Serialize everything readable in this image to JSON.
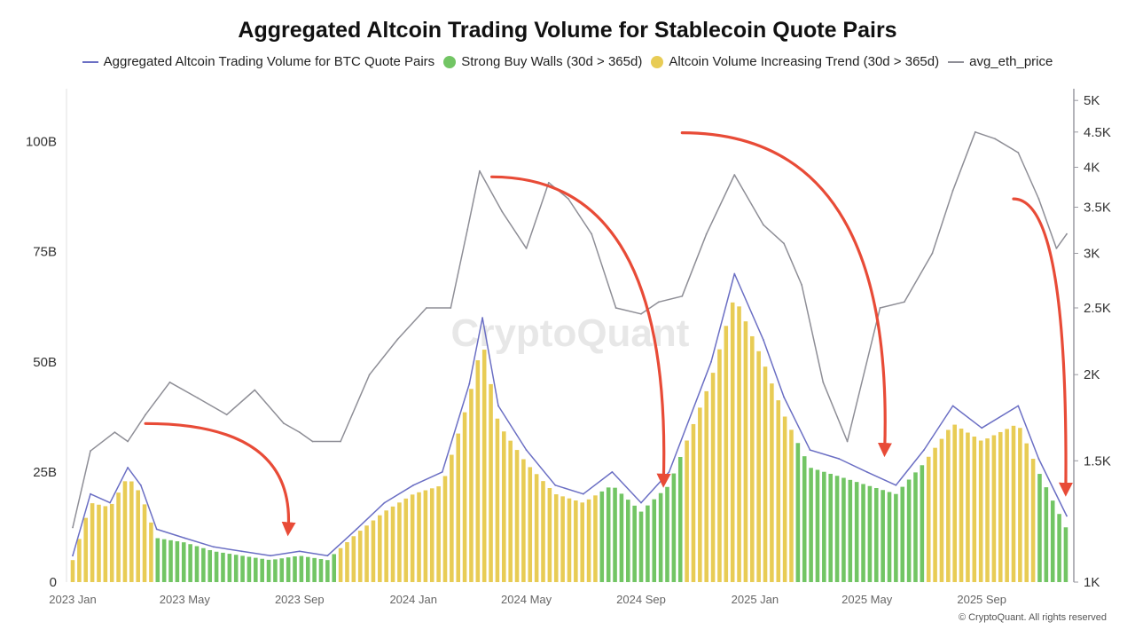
{
  "chart_data": {
    "type": "bar",
    "title": "Aggregated Altcoin Trading Volume for Stablecoin Quote Pairs",
    "legend_placement": "top",
    "grid": false,
    "x_ticks": [
      "2023 Jan",
      "2023 May",
      "2023 Sep",
      "2024 Jan",
      "2024 May",
      "2024 Sep",
      "2025 Jan",
      "2025 May",
      "2025 Sep"
    ],
    "y_left": {
      "ticks": [
        "0",
        "25B",
        "50B",
        "75B",
        "100B"
      ],
      "tick_values": [
        0,
        25,
        50,
        75,
        100
      ],
      "unit": "B",
      "ylim": [
        0,
        112
      ]
    },
    "y_right": {
      "scale": "log",
      "ticks": [
        "1K",
        "1.5K",
        "2K",
        "2.5K",
        "3K",
        "3.5K",
        "4K",
        "4.5K",
        "5K"
      ],
      "tick_values": [
        1000,
        1500,
        2000,
        2500,
        3000,
        3500,
        4000,
        4500,
        5000
      ],
      "ylim": [
        1000,
        5200
      ]
    },
    "x_range": [
      "2023-01-01",
      "2025-12-01"
    ],
    "series": [
      {
        "name": "Aggregated Altcoin Trading Volume for BTC Quote Pairs",
        "color": "#6b6fc4",
        "kind": "line",
        "points": [
          [
            "2023-01-01",
            6
          ],
          [
            "2023-01-20",
            20
          ],
          [
            "2023-02-10",
            18
          ],
          [
            "2023-03-01",
            26
          ],
          [
            "2023-03-15",
            22
          ],
          [
            "2023-04-01",
            12
          ],
          [
            "2023-05-01",
            10
          ],
          [
            "2023-06-01",
            8
          ],
          [
            "2023-07-01",
            7
          ],
          [
            "2023-08-01",
            6
          ],
          [
            "2023-09-01",
            7
          ],
          [
            "2023-10-01",
            6
          ],
          [
            "2023-11-01",
            12
          ],
          [
            "2023-12-01",
            18
          ],
          [
            "2024-01-01",
            22
          ],
          [
            "2024-02-01",
            25
          ],
          [
            "2024-03-01",
            45
          ],
          [
            "2024-03-15",
            60
          ],
          [
            "2024-04-01",
            40
          ],
          [
            "2024-05-01",
            30
          ],
          [
            "2024-06-01",
            22
          ],
          [
            "2024-07-01",
            20
          ],
          [
            "2024-08-01",
            25
          ],
          [
            "2024-09-01",
            18
          ],
          [
            "2024-10-01",
            25
          ],
          [
            "2024-11-15",
            50
          ],
          [
            "2024-12-10",
            70
          ],
          [
            "2025-01-10",
            55
          ],
          [
            "2025-02-01",
            42
          ],
          [
            "2025-03-01",
            30
          ],
          [
            "2025-04-01",
            28
          ],
          [
            "2025-05-01",
            25
          ],
          [
            "2025-06-01",
            22
          ],
          [
            "2025-07-01",
            30
          ],
          [
            "2025-08-01",
            40
          ],
          [
            "2025-09-01",
            35
          ],
          [
            "2025-10-10",
            40
          ],
          [
            "2025-11-01",
            28
          ],
          [
            "2025-12-01",
            15
          ]
        ]
      },
      {
        "name": "Strong Buy Walls (30d > 365d)",
        "color": "#72c564",
        "kind": "bar"
      },
      {
        "name": "Altcoin Volume Increasing Trend (30d > 365d)",
        "color": "#e8cc55",
        "kind": "bar"
      },
      {
        "name": "avg_eth_price",
        "color": "#8e8e96",
        "kind": "line",
        "axis": "right",
        "points": [
          [
            "2023-01-01",
            1200
          ],
          [
            "2023-01-20",
            1550
          ],
          [
            "2023-02-15",
            1650
          ],
          [
            "2023-03-01",
            1600
          ],
          [
            "2023-03-20",
            1750
          ],
          [
            "2023-04-15",
            1950
          ],
          [
            "2023-05-15",
            1850
          ],
          [
            "2023-06-15",
            1750
          ],
          [
            "2023-07-15",
            1900
          ],
          [
            "2023-08-15",
            1700
          ],
          [
            "2023-09-01",
            1650
          ],
          [
            "2023-09-15",
            1600
          ],
          [
            "2023-10-15",
            1600
          ],
          [
            "2023-11-15",
            2000
          ],
          [
            "2023-12-15",
            2250
          ],
          [
            "2024-01-15",
            2500
          ],
          [
            "2024-02-10",
            2500
          ],
          [
            "2024-02-28",
            3250
          ],
          [
            "2024-03-12",
            3950
          ],
          [
            "2024-04-05",
            3450
          ],
          [
            "2024-05-01",
            3050
          ],
          [
            "2024-05-25",
            3800
          ],
          [
            "2024-06-15",
            3600
          ],
          [
            "2024-07-10",
            3200
          ],
          [
            "2024-08-05",
            2500
          ],
          [
            "2024-09-01",
            2450
          ],
          [
            "2024-09-20",
            2550
          ],
          [
            "2024-10-15",
            2600
          ],
          [
            "2024-11-10",
            3200
          ],
          [
            "2024-12-10",
            3900
          ],
          [
            "2025-01-10",
            3300
          ],
          [
            "2025-02-01",
            3100
          ],
          [
            "2025-02-20",
            2700
          ],
          [
            "2025-03-15",
            1950
          ],
          [
            "2025-04-10",
            1600
          ],
          [
            "2025-05-15",
            2500
          ],
          [
            "2025-06-10",
            2550
          ],
          [
            "2025-07-10",
            3000
          ],
          [
            "2025-08-01",
            3700
          ],
          [
            "2025-08-25",
            4500
          ],
          [
            "2025-09-15",
            4400
          ],
          [
            "2025-10-10",
            4200
          ],
          [
            "2025-11-01",
            3600
          ],
          [
            "2025-11-20",
            3050
          ],
          [
            "2025-12-01",
            3200
          ]
        ]
      }
    ],
    "bar_envelope": [
      [
        "2023-01-01",
        5
      ],
      [
        "2023-01-20",
        18
      ],
      [
        "2023-02-10",
        17
      ],
      [
        "2023-03-01",
        24
      ],
      [
        "2023-03-15",
        20
      ],
      [
        "2023-04-01",
        10
      ],
      [
        "2023-05-01",
        9
      ],
      [
        "2023-06-01",
        7
      ],
      [
        "2023-07-01",
        6
      ],
      [
        "2023-08-01",
        5
      ],
      [
        "2023-09-01",
        6
      ],
      [
        "2023-10-01",
        5
      ],
      [
        "2023-11-01",
        11
      ],
      [
        "2023-12-01",
        16
      ],
      [
        "2024-01-01",
        20
      ],
      [
        "2024-02-01",
        22
      ],
      [
        "2024-03-01",
        42
      ],
      [
        "2024-03-15",
        55
      ],
      [
        "2024-04-01",
        36
      ],
      [
        "2024-05-01",
        27
      ],
      [
        "2024-06-01",
        20
      ],
      [
        "2024-07-01",
        18
      ],
      [
        "2024-08-01",
        22
      ],
      [
        "2024-09-01",
        16
      ],
      [
        "2024-10-01",
        22
      ],
      [
        "2024-11-15",
        46
      ],
      [
        "2024-12-10",
        65
      ],
      [
        "2025-01-10",
        50
      ],
      [
        "2025-02-01",
        38
      ],
      [
        "2025-03-01",
        26
      ],
      [
        "2025-04-01",
        24
      ],
      [
        "2025-05-01",
        22
      ],
      [
        "2025-06-01",
        20
      ],
      [
        "2025-07-01",
        27
      ],
      [
        "2025-08-01",
        36
      ],
      [
        "2025-09-01",
        32
      ],
      [
        "2025-10-10",
        36
      ],
      [
        "2025-11-01",
        25
      ],
      [
        "2025-12-01",
        12
      ]
    ],
    "trend_periods": [
      [
        "2023-01-01",
        "2023-04-01"
      ],
      [
        "2023-10-15",
        "2024-07-15"
      ],
      [
        "2024-10-15",
        "2025-02-15"
      ],
      [
        "2025-07-01",
        "2025-11-01"
      ]
    ],
    "annotations": [
      {
        "kind": "arrow",
        "color": "#e84b37",
        "from": [
          "2023-03-20",
          36
        ],
        "to": [
          "2023-08-20",
          12
        ]
      },
      {
        "kind": "arrow",
        "color": "#e84b37",
        "from": [
          "2024-03-25",
          92
        ],
        "to": [
          "2024-09-25",
          23
        ]
      },
      {
        "kind": "arrow",
        "color": "#e84b37",
        "from": [
          "2024-10-15",
          102
        ],
        "to": [
          "2025-05-20",
          30
        ]
      },
      {
        "kind": "arrow",
        "color": "#e84b37",
        "from": [
          "2025-10-05",
          87
        ],
        "to": [
          "2025-11-30",
          21
        ]
      }
    ]
  },
  "watermark": "CryptoQuant",
  "credit": "© CryptoQuant. All rights reserved"
}
